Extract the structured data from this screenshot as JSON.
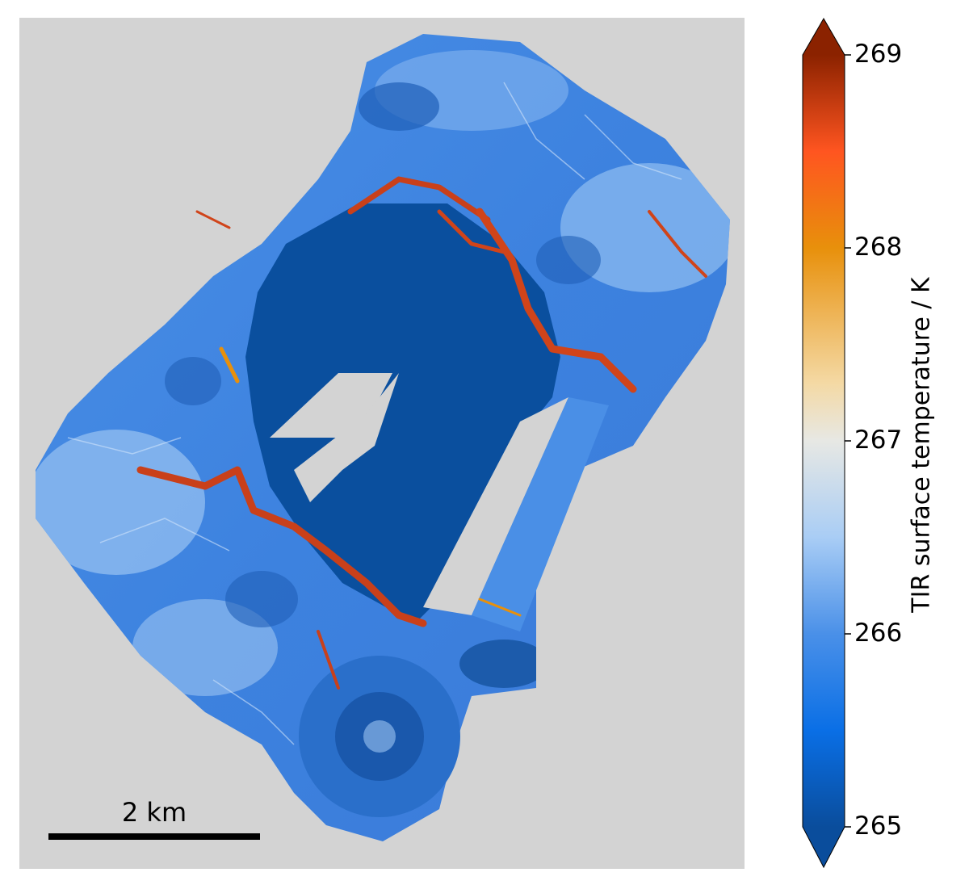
{
  "figure": {
    "colors": {
      "background": "#d3d3d3",
      "cold": "#0a4d9c",
      "mid": "#4a8fe6",
      "light": "#a9cdf5",
      "warm": "#d0441a",
      "hot": "#8b2200"
    },
    "scalebar": {
      "label": "2 km"
    },
    "colorbar": {
      "label": "TIR surface temperature / K",
      "min": 265,
      "max": 269,
      "extend": "both",
      "ticks": [
        "265",
        "266",
        "267",
        "268",
        "269"
      ],
      "stops": [
        {
          "value": 265.0,
          "color": "#0a4d9c"
        },
        {
          "value": 265.5,
          "color": "#0a6fe6"
        },
        {
          "value": 266.0,
          "color": "#4a90e8"
        },
        {
          "value": 266.5,
          "color": "#a9cdf5"
        },
        {
          "value": 267.0,
          "color": "#e7e8e4"
        },
        {
          "value": 267.3,
          "color": "#f4d9a4"
        },
        {
          "value": 268.0,
          "color": "#e8900b"
        },
        {
          "value": 268.5,
          "color": "#ff5520"
        },
        {
          "value": 269.0,
          "color": "#8b2200"
        }
      ]
    }
  }
}
